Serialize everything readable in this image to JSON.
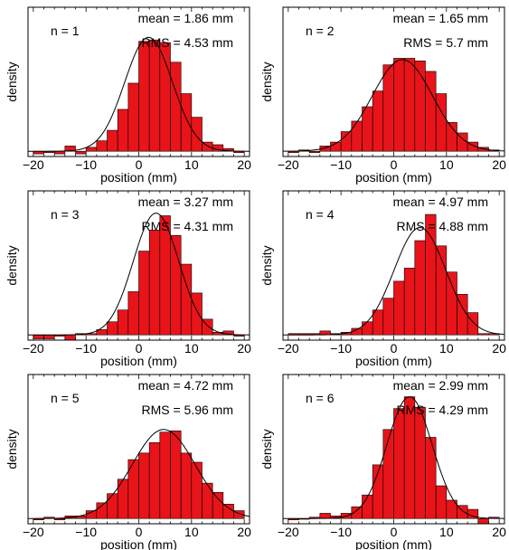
{
  "colors": {
    "bar_fill": "#e8141a",
    "bar_stroke": "#000000",
    "curve": "#000000",
    "axis": "#000000"
  },
  "chart_data": [
    {
      "type": "bar",
      "overlay": "gaussian-fit",
      "label": "n = 1",
      "stats": [
        "mean = 1.86 mm",
        "RMS = 4.53 mm"
      ],
      "xlabel": "position (mm)",
      "ylabel": "density",
      "xlim": [
        -21,
        21
      ],
      "ylim": [
        -0.004,
        0.11
      ],
      "xticks": [
        -20,
        -10,
        0,
        10,
        20
      ],
      "fit": {
        "mean": 1.86,
        "sigma": 4.53,
        "peak": 0.087
      },
      "bin_width": 2,
      "x": [
        -19,
        -17,
        -15,
        -13,
        -11,
        -9,
        -7,
        -5,
        -3,
        -1,
        1,
        3,
        5,
        7,
        9,
        11,
        13,
        15,
        17,
        19
      ],
      "values": [
        -0.002,
        -0.001,
        -0.002,
        0.004,
        -0.002,
        0.003,
        0.008,
        0.016,
        0.032,
        0.052,
        0.084,
        0.085,
        0.083,
        0.068,
        0.044,
        0.026,
        0.007,
        0.005,
        0.002,
        -0.001
      ]
    },
    {
      "type": "bar",
      "overlay": "gaussian-fit",
      "label": "n = 2",
      "stats": [
        "mean = 1.65 mm",
        "RMS = 5.7 mm"
      ],
      "xlabel": "position (mm)",
      "ylabel": "density",
      "xlim": [
        -21,
        21
      ],
      "ylim": [
        -0.004,
        0.11
      ],
      "xticks": [
        -20,
        -10,
        0,
        10,
        20
      ],
      "fit": {
        "mean": 1.65,
        "sigma": 5.7,
        "peak": 0.07
      },
      "bin_width": 2,
      "x": [
        -19,
        -17,
        -15,
        -13,
        -11,
        -9,
        -7,
        -5,
        -3,
        -1,
        1,
        3,
        5,
        7,
        9,
        11,
        13,
        15,
        17,
        19
      ],
      "values": [
        -0.001,
        0.001,
        -0.001,
        0.004,
        0.007,
        0.015,
        0.023,
        0.034,
        0.046,
        0.066,
        0.071,
        0.071,
        0.069,
        0.061,
        0.044,
        0.022,
        0.014,
        0.007,
        0.003,
        0.001
      ]
    },
    {
      "type": "bar",
      "overlay": "gaussian-fit",
      "label": "n = 3",
      "stats": [
        "mean = 3.27 mm",
        "RMS = 4.31 mm"
      ],
      "xlabel": "position (mm)",
      "ylabel": "density",
      "xlim": [
        -21,
        21
      ],
      "ylim": [
        -0.004,
        0.11
      ],
      "xticks": [
        -20,
        -10,
        0,
        10,
        20
      ],
      "fit": {
        "mean": 3.27,
        "sigma": 4.31,
        "peak": 0.093
      },
      "bin_width": 2,
      "x": [
        -19,
        -17,
        -15,
        -13,
        -11,
        -9,
        -7,
        -5,
        -3,
        -1,
        1,
        3,
        5,
        7,
        9,
        11,
        13,
        15,
        17,
        19
      ],
      "values": [
        -0.003,
        -0.003,
        -0.001,
        -0.004,
        0.001,
        0.001,
        0.004,
        0.01,
        0.019,
        0.033,
        0.064,
        0.08,
        0.091,
        0.076,
        0.054,
        0.032,
        0.012,
        0.002,
        0.003,
        -0.001
      ]
    },
    {
      "type": "bar",
      "overlay": "gaussian-fit",
      "label": "n = 4",
      "stats": [
        "mean = 4.97 mm",
        "RMS = 4.88 mm"
      ],
      "xlabel": "position (mm)",
      "ylabel": "density",
      "xlim": [
        -21,
        21
      ],
      "ylim": [
        -0.004,
        0.11
      ],
      "xticks": [
        -20,
        -10,
        0,
        10,
        20
      ],
      "fit": {
        "mean": 4.97,
        "sigma": 4.88,
        "peak": 0.082
      },
      "bin_width": 2,
      "x": [
        -19,
        -17,
        -15,
        -13,
        -11,
        -9,
        -7,
        -5,
        -3,
        -1,
        1,
        3,
        5,
        7,
        9,
        11,
        13,
        15,
        17,
        19
      ],
      "values": [
        0.001,
        0.001,
        0.001,
        0.003,
        0.001,
        0.002,
        0.005,
        0.01,
        0.019,
        0.028,
        0.041,
        0.051,
        0.072,
        0.092,
        0.068,
        0.048,
        0.031,
        0.017,
        0.001,
        0.001
      ]
    },
    {
      "type": "bar",
      "overlay": "gaussian-fit",
      "label": "n = 5",
      "stats": [
        "mean = 4.72 mm",
        "RMS = 5.96 mm"
      ],
      "xlabel": "position (mm)",
      "ylabel": "density",
      "xlim": [
        -21,
        21
      ],
      "ylim": [
        -0.004,
        0.11
      ],
      "xticks": [
        -20,
        -10,
        0,
        10,
        20
      ],
      "fit": {
        "mean": 4.72,
        "sigma": 5.96,
        "peak": 0.068
      },
      "bin_width": 2,
      "x": [
        -19,
        -17,
        -15,
        -13,
        -11,
        -9,
        -7,
        -5,
        -3,
        -1,
        1,
        3,
        5,
        7,
        9,
        11,
        13,
        15,
        17,
        19
      ],
      "values": [
        -0.001,
        0.001,
        -0.001,
        0.002,
        0.002,
        0.006,
        0.012,
        0.019,
        0.03,
        0.045,
        0.05,
        0.058,
        0.066,
        0.067,
        0.05,
        0.043,
        0.027,
        0.02,
        0.011,
        0.006
      ]
    },
    {
      "type": "bar",
      "overlay": "gaussian-fit",
      "label": "n = 6",
      "stats": [
        "mean = 2.99 mm",
        "RMS = 4.29 mm"
      ],
      "xlabel": "position (mm)",
      "ylabel": "density",
      "xlim": [
        -21,
        21
      ],
      "ylim": [
        -0.004,
        0.11
      ],
      "xticks": [
        -20,
        -10,
        0,
        10,
        20
      ],
      "fit": {
        "mean": 2.99,
        "sigma": 4.29,
        "peak": 0.093
      },
      "bin_width": 2,
      "x": [
        -19,
        -17,
        -15,
        -13,
        -11,
        -9,
        -7,
        -5,
        -3,
        -1,
        1,
        3,
        5,
        7,
        9,
        11,
        13,
        15,
        17,
        19
      ],
      "values": [
        -0.001,
        0.0,
        0.001,
        0.004,
        0.002,
        0.004,
        0.009,
        0.018,
        0.041,
        0.068,
        0.084,
        0.093,
        0.085,
        0.062,
        0.025,
        0.014,
        0.01,
        0.007,
        -0.004,
        0.001
      ]
    }
  ]
}
